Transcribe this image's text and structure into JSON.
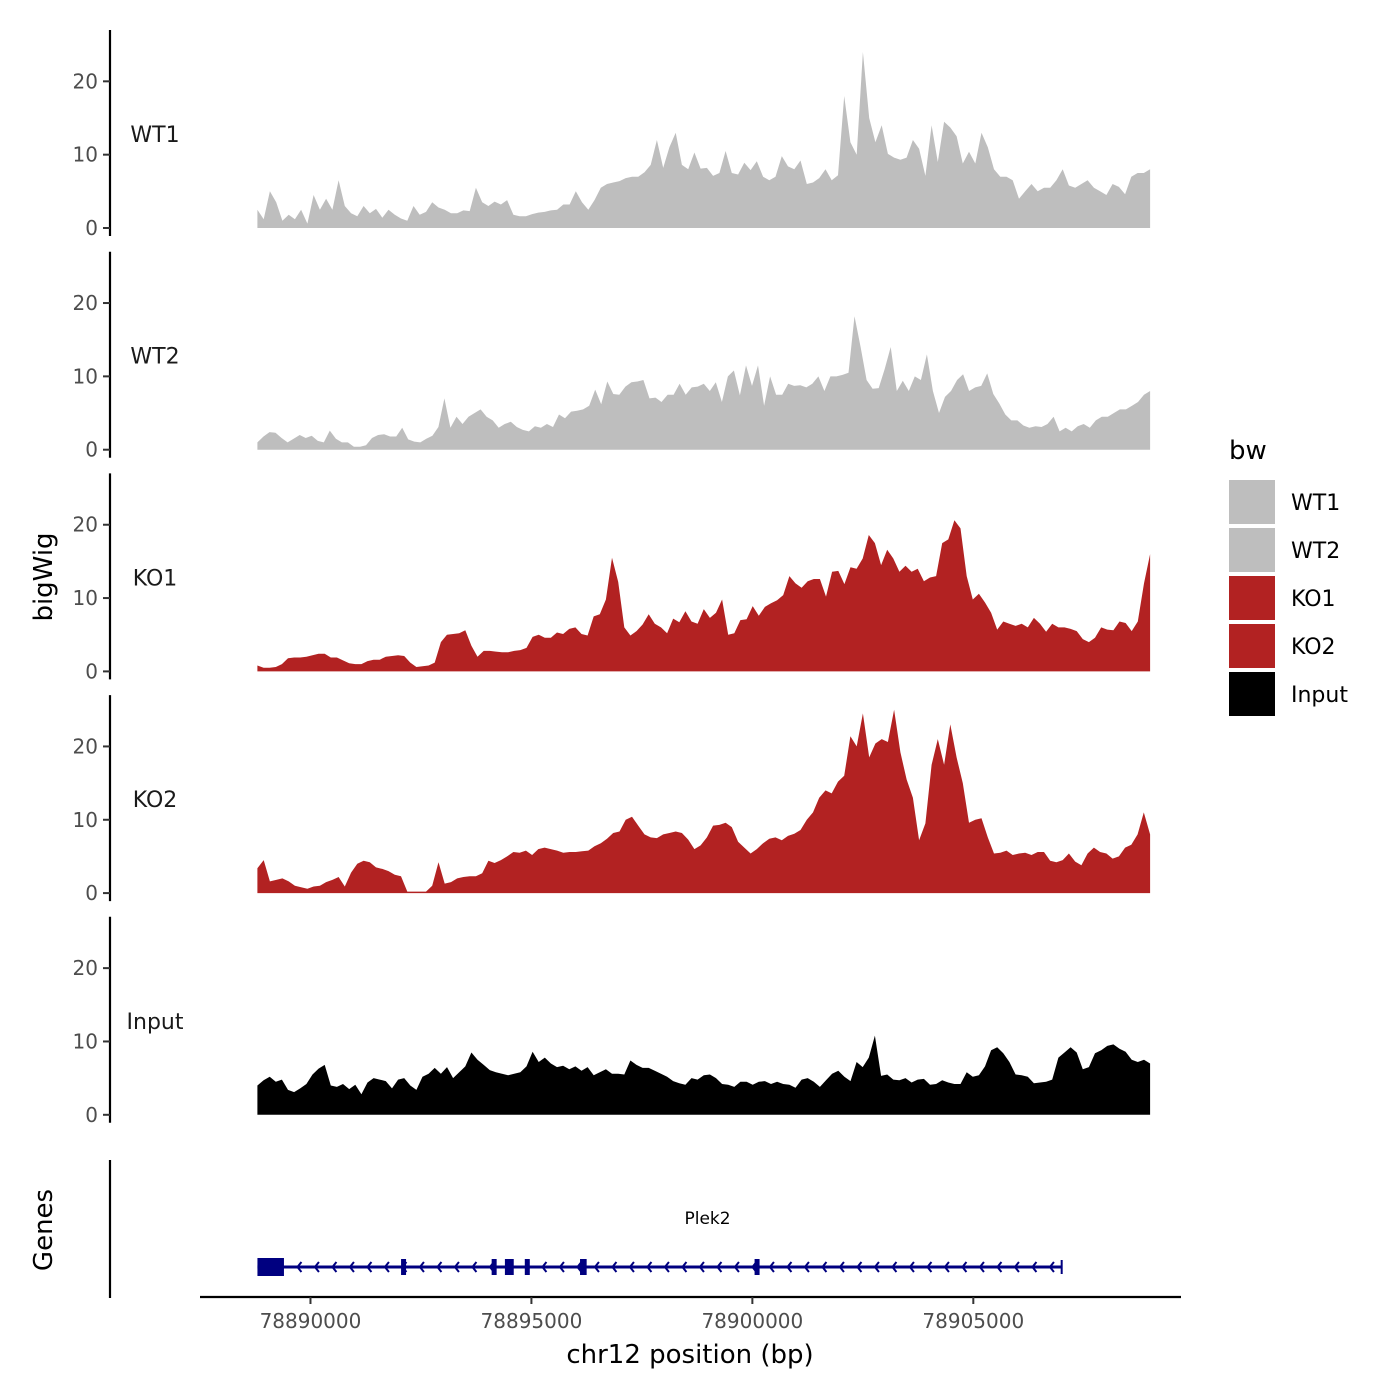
{
  "chart_data": {
    "type": "area",
    "chromosome_label": "chr12 position (bp)",
    "ylabel": "bigWig",
    "genes_label": "Genes",
    "xlim": [
      78887500,
      78909700
    ],
    "xticks": [
      78890000,
      78895000,
      78900000,
      78905000
    ],
    "xtick_labels": [
      "78890000",
      "78895000",
      "78900000",
      "78905000"
    ],
    "ylim": [
      0,
      27
    ],
    "yticks": [
      0,
      10,
      20
    ],
    "ytick_labels": [
      "0",
      "10",
      "20"
    ],
    "legend": {
      "title": "bw",
      "entries": [
        {
          "label": "WT1",
          "color": "#bebebe"
        },
        {
          "label": "WT2",
          "color": "#bebebe"
        },
        {
          "label": "KO1",
          "color": "#b22222"
        },
        {
          "label": "KO2",
          "color": "#b22222"
        },
        {
          "label": "Input",
          "color": "#000000"
        }
      ]
    },
    "x_start": 78888800,
    "x_end": 78909000,
    "series": [
      {
        "name": "WT1",
        "label": "WT1",
        "color": "#bebebe",
        "values": [
          2.5,
          1.2,
          5,
          3.5,
          1,
          1.8,
          1.2,
          2.5,
          0.6,
          4.5,
          2.5,
          4,
          2.5,
          6.5,
          3,
          2,
          1.6,
          3,
          2,
          2.6,
          1.4,
          2.5,
          1.8,
          1.3,
          1,
          3,
          1.8,
          2.2,
          3.5,
          2.8,
          2.5,
          2,
          2,
          2.4,
          2.3,
          5.5,
          3.5,
          3,
          3.6,
          3.2,
          3.8,
          1.8,
          1.6,
          1.6,
          1.9,
          2.1,
          2.2,
          2.4,
          2.5,
          3.2,
          3.2,
          5,
          3.5,
          2.5,
          3.8,
          5.5,
          6,
          6.2,
          6.4,
          6.8,
          7,
          7,
          7.6,
          8.6,
          12,
          8.2,
          11,
          13,
          8.6,
          8,
          10.3,
          8.1,
          8.2,
          7.1,
          7.5,
          10.5,
          7.5,
          7.3,
          8.9,
          7.9,
          9.1,
          7,
          6.5,
          7,
          9.8,
          8.4,
          8,
          9.2,
          6,
          6.2,
          6.8,
          8,
          6.5,
          7.2,
          18,
          11.7,
          10,
          24,
          15,
          11.7,
          14,
          10.1,
          9.6,
          9.3,
          9.6,
          12,
          10.8,
          7.1,
          14,
          9,
          14.5,
          13.7,
          12.5,
          8.8,
          10.4,
          8.8,
          13,
          11,
          8,
          7,
          7,
          6.5,
          4,
          5,
          6,
          5,
          5.5,
          5.5,
          6.5,
          8,
          5.8,
          5.5,
          6,
          6.5,
          5.5,
          5,
          4.5,
          6,
          5.6,
          4.6,
          7,
          7.5,
          7.5,
          8
        ]
      },
      {
        "name": "WT2",
        "label": "WT2",
        "color": "#bebebe",
        "values": [
          1,
          1.8,
          2.4,
          2.3,
          1.6,
          1,
          1.5,
          2,
          1.6,
          1.9,
          1.2,
          1,
          2.6,
          1.5,
          1,
          1,
          0.4,
          0.4,
          0.6,
          1.6,
          2,
          2.1,
          1.8,
          1.8,
          3,
          1.4,
          1.1,
          1,
          1.5,
          1.9,
          3.1,
          7,
          3,
          4.5,
          3.5,
          4.5,
          5,
          5.5,
          4.5,
          4,
          3,
          3.5,
          3.8,
          3.1,
          2.7,
          2.5,
          3.2,
          3,
          3.5,
          3.1,
          4.8,
          4.3,
          5.2,
          5.3,
          5.5,
          6,
          8.2,
          6.2,
          9.3,
          7.6,
          7.5,
          8.6,
          9.2,
          9.3,
          9.5,
          7,
          7.1,
          6.5,
          7.5,
          7.5,
          9,
          7.5,
          8.5,
          8.6,
          9,
          8,
          9.2,
          6.5,
          10,
          10.8,
          7.4,
          11.5,
          8.7,
          11.5,
          6,
          10,
          7.5,
          7.5,
          9,
          8.7,
          8.8,
          8.5,
          9,
          10,
          8,
          10,
          10,
          10.2,
          10.5,
          18.2,
          14,
          9.5,
          8.3,
          8.4,
          11,
          14,
          8,
          9.4,
          8,
          10,
          9.5,
          13,
          8,
          5,
          7.2,
          8,
          9.5,
          10.3,
          8,
          8.5,
          8.7,
          10.4,
          7.6,
          6.3,
          4.8,
          4,
          4,
          3.3,
          3,
          3.2,
          3.1,
          3.5,
          4.5,
          2.5,
          3,
          2.5,
          3.2,
          3.5,
          3,
          4,
          4.5,
          4.5,
          5,
          5.5,
          5.5,
          6,
          6.5,
          7.5,
          8
        ]
      },
      {
        "name": "KO1",
        "label": "KO1",
        "color": "#b22222",
        "values": [
          0.8,
          0.5,
          0.5,
          0.6,
          1,
          1.8,
          1.9,
          1.9,
          2,
          2.2,
          2.4,
          2.4,
          1.9,
          1.9,
          1.5,
          1.1,
          1,
          1,
          1.4,
          1.6,
          1.6,
          2,
          2.1,
          2.2,
          2.1,
          1.2,
          0.6,
          0.7,
          0.8,
          1.2,
          4,
          5,
          5.1,
          5.2,
          5.6,
          3.5,
          2,
          2.8,
          2.8,
          2.7,
          2.6,
          2.6,
          2.8,
          2.9,
          3.2,
          4.7,
          5,
          4.6,
          4.6,
          5.3,
          5.1,
          5.8,
          6,
          5.1,
          4.9,
          7.5,
          7.8,
          9.8,
          15.5,
          12.2,
          6,
          4.9,
          5.5,
          6.4,
          7.8,
          6.5,
          6,
          5.2,
          7.2,
          6.7,
          8.2,
          6.8,
          6.5,
          8.5,
          7.3,
          8,
          9.8,
          5,
          5.2,
          7,
          7.1,
          8.9,
          7.6,
          8.8,
          9.3,
          9.7,
          10.4,
          13,
          12,
          11.4,
          12.3,
          12.6,
          12.6,
          10.2,
          13.6,
          13.7,
          11.9,
          14.2,
          14,
          15.4,
          18.6,
          17.5,
          14.5,
          16.6,
          15.4,
          13.6,
          14.4,
          13.6,
          14,
          12.3,
          12.8,
          13,
          17.5,
          18,
          20.6,
          19.5,
          13,
          9.8,
          10.6,
          9.4,
          8,
          5.7,
          6.8,
          6.5,
          6.2,
          6.5,
          6,
          7.3,
          6.5,
          5.4,
          6.5,
          6,
          6,
          5.8,
          5.5,
          4.4,
          4,
          4.6,
          6,
          5.7,
          5.6,
          6.8,
          6.6,
          5.5,
          6.8,
          12,
          16
        ]
      },
      {
        "name": "KO2",
        "label": "KO2",
        "color": "#b22222",
        "values": [
          3.4,
          4.5,
          1.6,
          1.8,
          2,
          1.6,
          1,
          0.8,
          0.6,
          0.9,
          1,
          1.5,
          1.8,
          2.2,
          0.9,
          2.8,
          4,
          4.4,
          4.2,
          3.5,
          3.3,
          3,
          2.5,
          2.3,
          0.2,
          0.2,
          0.2,
          0.2,
          1,
          4.2,
          1.3,
          1.5,
          2,
          2.2,
          2.3,
          2.3,
          2.7,
          4.4,
          4.1,
          4.5,
          5,
          5.6,
          5.5,
          5.8,
          5.2,
          6,
          6.2,
          6,
          5.8,
          5.5,
          5.6,
          5.6,
          5.7,
          5.8,
          6.4,
          6.8,
          7.4,
          8.2,
          8.4,
          10,
          10.4,
          9.2,
          8,
          7.6,
          7.5,
          8,
          8.2,
          8.4,
          8.2,
          7.3,
          6,
          6.5,
          7.6,
          9.2,
          9.3,
          9.6,
          9,
          7,
          6.2,
          5.4,
          6,
          6.8,
          7.4,
          7.6,
          7.2,
          7.8,
          8.1,
          8.6,
          10,
          11,
          13,
          14,
          13.6,
          15.2,
          16,
          21.4,
          20,
          24.5,
          18.5,
          20.4,
          21,
          20.6,
          25,
          19.2,
          15.5,
          13,
          7.2,
          9.5,
          17.5,
          21,
          17.5,
          23,
          18.5,
          15,
          9.6,
          10,
          10.2,
          7.6,
          5.4,
          5.5,
          5.8,
          5.2,
          5.4,
          5.5,
          5.2,
          5.6,
          5.6,
          4.4,
          4.2,
          4.5,
          5.4,
          4.3,
          3.8,
          5.4,
          6.2,
          5.6,
          5.4,
          4.7,
          5,
          6.2,
          6.6,
          8,
          11,
          8
        ]
      },
      {
        "name": "Input",
        "label": "Input",
        "color": "#000000",
        "values": [
          4,
          4.7,
          5.2,
          4.5,
          4.8,
          3.4,
          3.1,
          3.6,
          4.2,
          5.5,
          6.3,
          6.8,
          4,
          3.8,
          4.2,
          3.5,
          4.1,
          2.8,
          4.4,
          5,
          4.8,
          4.6,
          3.6,
          4.8,
          5,
          4,
          3.4,
          5.2,
          5.6,
          6.4,
          5.6,
          6.5,
          5,
          5.8,
          6.6,
          8.5,
          7.5,
          6.8,
          6.1,
          5.8,
          5.6,
          5.4,
          5.6,
          5.8,
          6.6,
          8.6,
          7.2,
          7.8,
          7,
          6.5,
          6.7,
          6.2,
          6.6,
          6,
          6.5,
          5.4,
          5.8,
          6.2,
          5.6,
          5.6,
          5.5,
          7.4,
          6.8,
          6.4,
          6.4,
          6,
          5.6,
          5.2,
          4.6,
          4.3,
          4.1,
          5,
          4.8,
          5.4,
          5.5,
          5,
          4.2,
          4.1,
          3.8,
          4.5,
          4.5,
          4.1,
          4.5,
          4.6,
          4.2,
          4.5,
          4.2,
          4.1,
          3.7,
          4.8,
          5,
          4.5,
          3.8,
          4.7,
          5.6,
          6,
          5.2,
          4.6,
          7.2,
          6.5,
          7.8,
          10.8,
          5.3,
          5.5,
          4.8,
          4.7,
          5,
          4.4,
          4.8,
          4.9,
          4.1,
          4.2,
          4.7,
          4.4,
          4.2,
          4.2,
          5.8,
          5.2,
          5.4,
          6.6,
          8.8,
          9.2,
          8.4,
          7.2,
          5.5,
          5.4,
          5.2,
          4.3,
          4.4,
          4.5,
          4.8,
          7.8,
          8.5,
          9.2,
          8.5,
          6.2,
          6.5,
          8.4,
          8.8,
          9.4,
          9.6,
          9,
          8.6,
          7.5,
          7.2,
          7.5,
          7
        ]
      }
    ],
    "gene": {
      "name": "Plek2",
      "start": 78888800,
      "end": 78907000,
      "strand": "-",
      "color": "#000080",
      "exons": [
        [
          78888800,
          78889400
        ],
        [
          78892050,
          78892080
        ],
        [
          78894100,
          78894180
        ],
        [
          78894400,
          78894600
        ],
        [
          78894850,
          78894950
        ],
        [
          78896100,
          78896250
        ],
        [
          78900050,
          78900150
        ]
      ]
    }
  }
}
